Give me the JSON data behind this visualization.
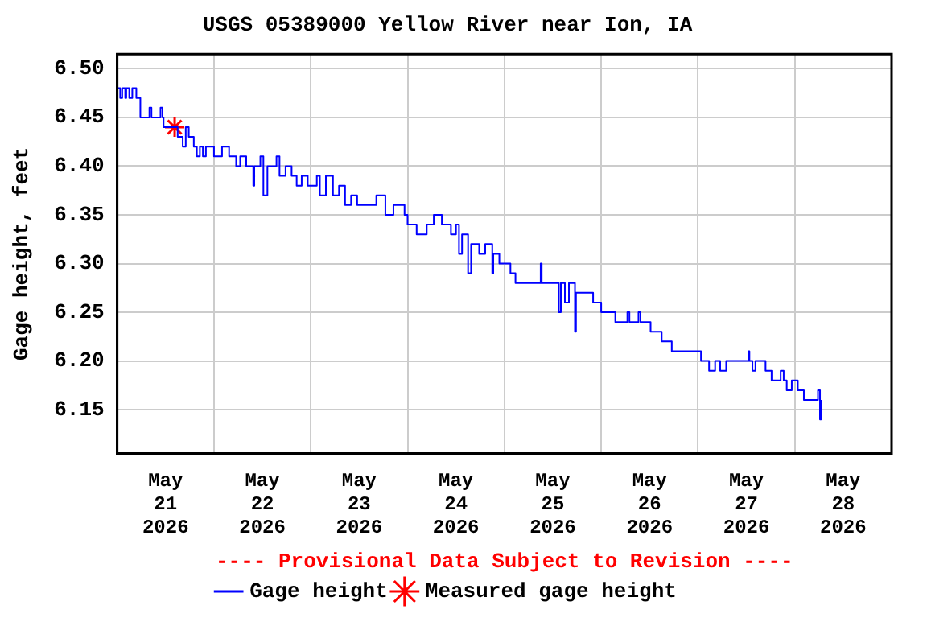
{
  "chart_data": {
    "type": "step",
    "title": "USGS 05389000 Yellow River near Ion, IA",
    "ylabel": "Gage height, feet",
    "annotations": [
      "---- Provisional Data Subject to Revision ----"
    ],
    "xlim": [
      "2026-05-21T00:00",
      "2026-05-29T00:00"
    ],
    "xticks": [
      {
        "value": "2026-05-21T00:00",
        "label": null
      },
      {
        "value": "2026-05-21T12:00",
        "label": "May\n21\n2026"
      },
      {
        "value": "2026-05-22T00:00",
        "label": null
      },
      {
        "value": "2026-05-22T12:00",
        "label": "May\n22\n2026"
      },
      {
        "value": "2026-05-23T00:00",
        "label": null
      },
      {
        "value": "2026-05-23T12:00",
        "label": "May\n23\n2026"
      },
      {
        "value": "2026-05-24T00:00",
        "label": null
      },
      {
        "value": "2026-05-24T12:00",
        "label": "May\n24\n2026"
      },
      {
        "value": "2026-05-25T00:00",
        "label": null
      },
      {
        "value": "2026-05-25T12:00",
        "label": "May\n25\n2026"
      },
      {
        "value": "2026-05-26T00:00",
        "label": null
      },
      {
        "value": "2026-05-26T12:00",
        "label": "May\n26\n2026"
      },
      {
        "value": "2026-05-27T00:00",
        "label": null
      },
      {
        "value": "2026-05-27T12:00",
        "label": "May\n27\n2026"
      },
      {
        "value": "2026-05-28T00:00",
        "label": null
      },
      {
        "value": "2026-05-28T12:00",
        "label": "May\n28\n2026"
      },
      {
        "value": "2026-05-29T00:00",
        "label": null
      }
    ],
    "ylim": [
      6.105,
      6.515
    ],
    "yticks": [
      6.15,
      {
        "value": 6.2,
        "label": "6.20"
      },
      6.25,
      {
        "value": 6.3,
        "label": "6.30"
      },
      6.35,
      {
        "value": 6.4,
        "label": "6.40"
      },
      6.45,
      {
        "value": 6.5,
        "label": "6.50"
      }
    ],
    "grid": true,
    "legend": "bottom",
    "series": [
      {
        "name": "Gage height",
        "type": "step",
        "color": "#0000ff",
        "marker": "none",
        "x": [
          "2026-05-21T00:00",
          "2026-05-21T00:45",
          "2026-05-21T01:15",
          "2026-05-21T02:00",
          "2026-05-21T02:15",
          "2026-05-21T03:00",
          "2026-05-21T03:45",
          "2026-05-21T04:45",
          "2026-05-21T05:45",
          "2026-05-21T08:00",
          "2026-05-21T08:30",
          "2026-05-21T10:45",
          "2026-05-21T11:15",
          "2026-05-21T11:30",
          "2026-05-21T15:00",
          "2026-05-21T16:15",
          "2026-05-21T17:00",
          "2026-05-21T17:45",
          "2026-05-21T19:00",
          "2026-05-21T19:45",
          "2026-05-21T20:30",
          "2026-05-21T21:15",
          "2026-05-21T22:00",
          "2026-05-22T00:00",
          "2026-05-22T02:00",
          "2026-05-22T03:45",
          "2026-05-22T05:30",
          "2026-05-22T06:30",
          "2026-05-22T08:00",
          "2026-05-22T09:45",
          "2026-05-22T10:00",
          "2026-05-22T11:30",
          "2026-05-22T12:15",
          "2026-05-22T13:15",
          "2026-05-22T15:30",
          "2026-05-22T16:15",
          "2026-05-22T17:45",
          "2026-05-22T19:15",
          "2026-05-22T20:30",
          "2026-05-22T21:45",
          "2026-05-22T23:15",
          "2026-05-23T01:30",
          "2026-05-23T02:15",
          "2026-05-23T03:45",
          "2026-05-23T05:30",
          "2026-05-23T07:00",
          "2026-05-23T08:30",
          "2026-05-23T10:00",
          "2026-05-23T11:30",
          "2026-05-23T14:45",
          "2026-05-23T16:15",
          "2026-05-23T18:30",
          "2026-05-23T20:30",
          "2026-05-23T23:15",
          "2026-05-24T00:00",
          "2026-05-24T02:15",
          "2026-05-24T04:45",
          "2026-05-24T06:30",
          "2026-05-24T08:30",
          "2026-05-24T10:45",
          "2026-05-24T12:00",
          "2026-05-24T12:45",
          "2026-05-24T13:30",
          "2026-05-24T15:00",
          "2026-05-24T15:45",
          "2026-05-24T17:45",
          "2026-05-24T19:15",
          "2026-05-24T21:00",
          "2026-05-24T21:15",
          "2026-05-24T22:45",
          "2026-05-25T01:30",
          "2026-05-25T02:45",
          "2026-05-25T09:00",
          "2026-05-25T09:15",
          "2026-05-25T13:15",
          "2026-05-25T13:30",
          "2026-05-25T14:00",
          "2026-05-25T15:00",
          "2026-05-25T16:00",
          "2026-05-25T17:30",
          "2026-05-25T17:45",
          "2026-05-25T22:00",
          "2026-05-26T00:00",
          "2026-05-26T03:30",
          "2026-05-26T06:30",
          "2026-05-26T07:00",
          "2026-05-26T09:15",
          "2026-05-26T09:45",
          "2026-05-26T12:15",
          "2026-05-26T15:00",
          "2026-05-26T17:30",
          "2026-05-27T00:45",
          "2026-05-27T02:45",
          "2026-05-27T04:15",
          "2026-05-27T05:30",
          "2026-05-27T07:00",
          "2026-05-27T12:30",
          "2026-05-27T12:45",
          "2026-05-27T13:30",
          "2026-05-27T14:15",
          "2026-05-27T16:45",
          "2026-05-27T18:15",
          "2026-05-27T20:30",
          "2026-05-27T21:15",
          "2026-05-27T22:00",
          "2026-05-27T23:15",
          "2026-05-28T00:45",
          "2026-05-28T02:15",
          "2026-05-28T05:45",
          "2026-05-28T06:15",
          "2026-05-28T06:30"
        ],
        "values": [
          6.48,
          6.47,
          6.48,
          6.47,
          6.48,
          6.47,
          6.48,
          6.47,
          6.45,
          6.46,
          6.45,
          6.46,
          6.45,
          6.44,
          6.43,
          6.42,
          6.44,
          6.43,
          6.42,
          6.41,
          6.42,
          6.41,
          6.42,
          6.41,
          6.42,
          6.41,
          6.4,
          6.41,
          6.4,
          6.38,
          6.4,
          6.41,
          6.37,
          6.4,
          6.41,
          6.39,
          6.4,
          6.39,
          6.38,
          6.39,
          6.38,
          6.39,
          6.37,
          6.39,
          6.37,
          6.38,
          6.36,
          6.37,
          6.36,
          6.36,
          6.37,
          6.35,
          6.36,
          6.35,
          6.34,
          6.33,
          6.34,
          6.35,
          6.34,
          6.33,
          6.34,
          6.31,
          6.33,
          6.29,
          6.32,
          6.31,
          6.32,
          6.29,
          6.31,
          6.3,
          6.29,
          6.28,
          6.3,
          6.28,
          6.28,
          6.25,
          6.28,
          6.26,
          6.28,
          6.23,
          6.27,
          6.26,
          6.25,
          6.24,
          6.25,
          6.24,
          6.25,
          6.24,
          6.23,
          6.22,
          6.21,
          6.2,
          6.19,
          6.2,
          6.19,
          6.2,
          6.21,
          6.2,
          6.19,
          6.2,
          6.19,
          6.18,
          6.19,
          6.18,
          6.17,
          6.18,
          6.17,
          6.16,
          6.17,
          6.14,
          6.16
        ]
      },
      {
        "name": "Measured gage height",
        "type": "scatter",
        "color": "#ff0000",
        "marker": "cross",
        "x": [
          "2026-05-21T14:15"
        ],
        "values": [
          6.44
        ]
      }
    ]
  }
}
